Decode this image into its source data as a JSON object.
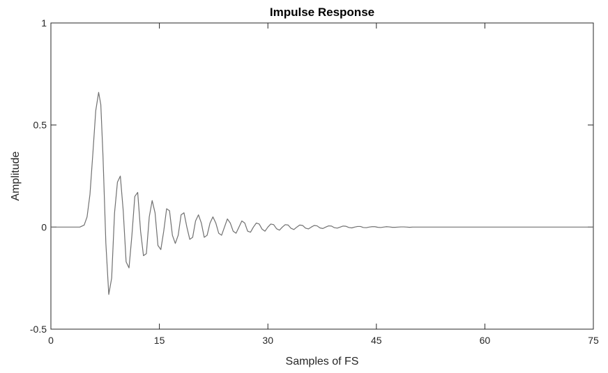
{
  "chart_data": {
    "type": "line",
    "title": "Impulse Response",
    "xlabel": "Samples of FS",
    "ylabel": "Amplitude",
    "xlim": [
      0,
      75
    ],
    "ylim": [
      -0.5,
      1
    ],
    "xticks": [
      0,
      15,
      30,
      45,
      60,
      75
    ],
    "xtick_labels": [
      "0",
      "15",
      "30",
      "45",
      "60",
      "75"
    ],
    "yticks": [
      -0.5,
      0,
      0.5,
      1
    ],
    "ytick_labels": [
      "-0.5",
      "0",
      "0.5",
      "1"
    ],
    "grid": false,
    "line_color": "#707070",
    "series": [
      {
        "x": [
          0,
          4.0,
          4.6,
          5.0,
          5.4,
          5.8,
          6.2,
          6.6,
          6.9,
          7.2,
          7.6,
          8.0,
          8.4,
          8.8,
          9.2,
          9.6,
          10.0,
          10.4,
          10.8,
          11.2,
          11.6,
          12.0,
          12.4,
          12.8,
          13.2,
          13.6,
          14.0,
          14.4,
          14.8,
          15.2,
          15.6,
          16.0,
          16.4,
          16.8,
          17.2,
          17.6,
          18.0,
          18.4,
          18.8,
          19.2,
          19.6,
          20.0,
          20.4,
          20.8,
          21.2,
          21.6,
          22.0,
          22.4,
          22.8,
          23.2,
          23.6,
          24.0,
          24.4,
          24.8,
          25.2,
          25.6,
          26.0,
          26.4,
          26.8,
          27.2,
          27.6,
          28.0,
          28.4,
          28.8,
          29.2,
          29.6,
          30.0,
          30.4,
          30.8,
          31.2,
          31.6,
          32.0,
          32.4,
          32.8,
          33.2,
          33.6,
          34.0,
          34.4,
          34.8,
          35.2,
          35.6,
          36.0,
          36.4,
          36.8,
          37.2,
          37.6,
          38.0,
          38.4,
          38.8,
          39.2,
          39.6,
          40.0,
          40.4,
          40.8,
          41.2,
          41.6,
          42.0,
          42.4,
          42.8,
          43.2,
          43.6,
          44.0,
          44.4,
          44.8,
          45.2,
          45.6,
          46.0,
          46.4,
          46.8,
          47.2,
          47.6,
          48.0,
          48.4,
          48.8,
          49.2,
          49.6,
          50.0,
          51.0,
          52.0,
          75
        ],
        "y": [
          0,
          0.0,
          0.01,
          0.05,
          0.16,
          0.36,
          0.57,
          0.66,
          0.6,
          0.35,
          -0.08,
          -0.33,
          -0.25,
          0.07,
          0.22,
          0.25,
          0.08,
          -0.17,
          -0.2,
          -0.04,
          0.15,
          0.17,
          -0.02,
          -0.14,
          -0.13,
          0.05,
          0.13,
          0.07,
          -0.09,
          -0.11,
          -0.02,
          0.09,
          0.08,
          -0.04,
          -0.08,
          -0.04,
          0.06,
          0.07,
          0.0,
          -0.06,
          -0.05,
          0.03,
          0.06,
          0.02,
          -0.05,
          -0.04,
          0.02,
          0.05,
          0.02,
          -0.03,
          -0.04,
          0.0,
          0.04,
          0.02,
          -0.02,
          -0.03,
          0.0,
          0.03,
          0.02,
          -0.02,
          -0.025,
          0.0,
          0.02,
          0.015,
          -0.01,
          -0.02,
          0.0,
          0.015,
          0.012,
          -0.008,
          -0.015,
          0.0,
          0.012,
          0.01,
          -0.006,
          -0.012,
          0.0,
          0.01,
          0.008,
          -0.005,
          -0.009,
          0.0,
          0.008,
          0.006,
          -0.004,
          -0.007,
          0.0,
          0.006,
          0.005,
          -0.003,
          -0.005,
          0.0,
          0.005,
          0.004,
          -0.002,
          -0.004,
          0.0,
          0.003,
          0.003,
          -0.002,
          -0.003,
          0.0,
          0.002,
          0.002,
          -0.001,
          -0.002,
          0.0,
          0.002,
          0.001,
          -0.001,
          -0.001,
          0.0,
          0.001,
          0.001,
          0.0,
          -0.001,
          0.0,
          0.0,
          0.0,
          0.0
        ]
      }
    ]
  }
}
